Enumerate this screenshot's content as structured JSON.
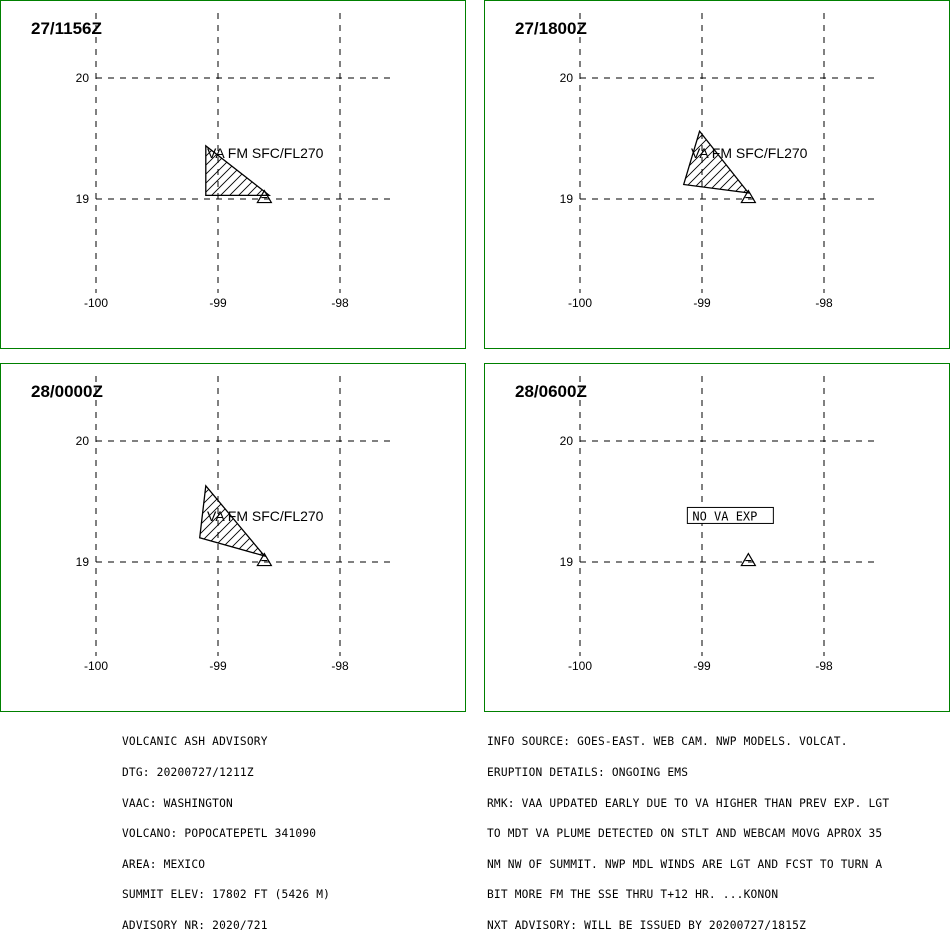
{
  "axes": {
    "lat_labels": [
      "20",
      "19"
    ],
    "lon_labels": [
      "-100",
      "-99",
      "-98"
    ],
    "lat_values": [
      20,
      19
    ],
    "lon_values": [
      -100,
      -99,
      -98
    ]
  },
  "colors": {
    "frame": "#008000",
    "grid": "#000000",
    "hatch": "#000000"
  },
  "panels": [
    {
      "time": "27/1156Z",
      "label": "VA FM SFC/FL270",
      "boxed": false,
      "polygon": [
        [
          -99.1,
          19.44
        ],
        [
          -99.1,
          19.03
        ],
        [
          -98.58,
          19.03
        ],
        [
          -98.63,
          19.07
        ]
      ]
    },
    {
      "time": "27/1800Z",
      "label": "VA FM SFC/FL270",
      "boxed": false,
      "polygon": [
        [
          -99.02,
          19.56
        ],
        [
          -99.15,
          19.12
        ],
        [
          -98.62,
          19.05
        ]
      ]
    },
    {
      "time": "28/0000Z",
      "label": "VA FM SFC/FL270",
      "boxed": false,
      "polygon": [
        [
          -99.1,
          19.63
        ],
        [
          -99.15,
          19.2
        ],
        [
          -98.62,
          19.05
        ]
      ]
    },
    {
      "time": "28/0600Z",
      "label": "NO VA EXP",
      "boxed": true,
      "polygon": []
    }
  ],
  "volcano": {
    "name_symbol": "volcano-triangle",
    "lon": -98.62,
    "lat": 19.02
  },
  "advisory_left": [
    "VOLCANIC ASH ADVISORY",
    "DTG: 20200727/1211Z",
    "VAAC: WASHINGTON",
    "VOLCANO: POPOCATEPETL 341090",
    "AREA: MEXICO",
    "SUMMIT ELEV: 17802 FT (5426 M)",
    "ADVISORY NR: 2020/721"
  ],
  "advisory_right": [
    "INFO SOURCE: GOES-EAST. WEB CAM. NWP MODELS. VOLCAT.",
    "ERUPTION DETAILS: ONGOING EMS",
    "RMK: VAA UPDATED EARLY DUE TO VA HIGHER THAN PREV EXP. LGT",
    "TO MDT VA PLUME DETECTED ON STLT AND WEBCAM MOVG APROX 35",
    "NM NW OF SUMMIT. NWP MDL WINDS ARE LGT AND FCST TO TURN A",
    "BIT MORE FM THE SSE THRU T+12 HR. ...KONON",
    "NXT ADVISORY: WILL BE ISSUED BY 20200727/1815Z"
  ]
}
